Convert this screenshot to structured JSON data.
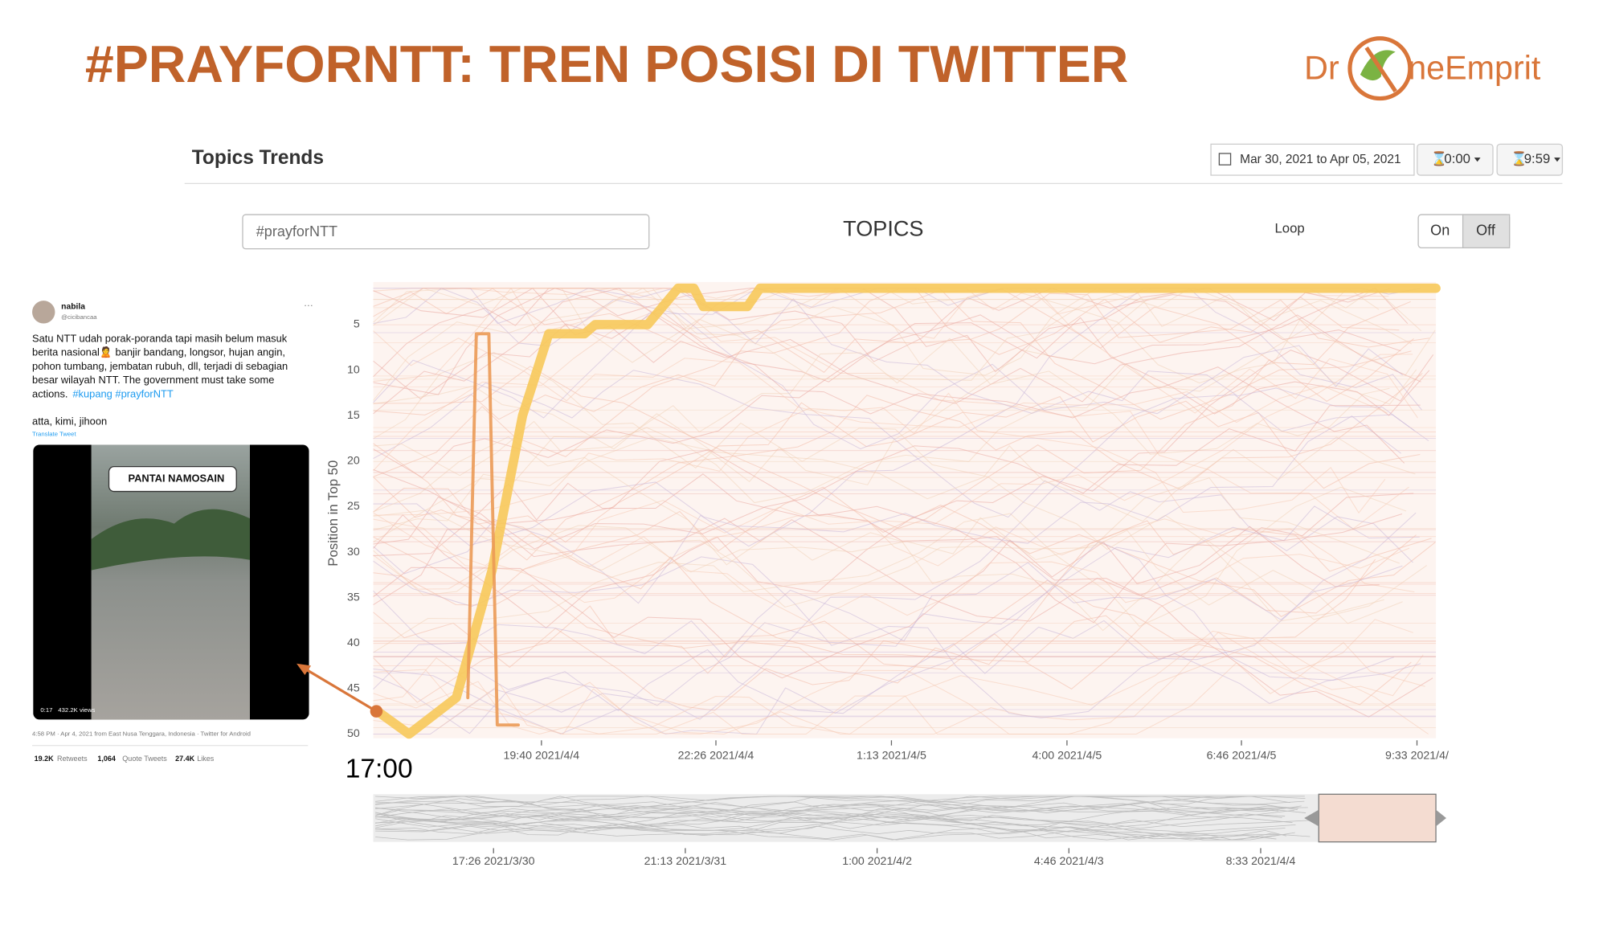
{
  "slide": {
    "title": "#PRAYFORNTT: TREN POSISI DI TWITTER",
    "logo_left": "Dr",
    "logo_right": "neEmprit"
  },
  "app": {
    "title": "Topics Trends",
    "date_range": "Mar 30, 2021 to Apr 05, 2021",
    "start_time": "0:00",
    "end_time": "9:59",
    "search": "#prayforNTT",
    "topics_label": "TOPICS",
    "loop_label": "Loop",
    "on": "On",
    "off": "Off",
    "navigator_ticks": [
      "17:26 2021/3/30",
      "21:13 2021/3/31",
      "1:00 2021/4/2",
      "4:46 2021/4/3",
      "8:33 2021/4/4"
    ]
  },
  "tweet": {
    "name": "nabila",
    "handle": "@cicibancaa",
    "lines": [
      "Satu NTT udah porak-poranda tapi masih belum masuk",
      "berita nasional🙎 banjir bandang, longsor, hujan angin,",
      "pohon tumbang, jembatan rubuh, dll, terjadi di sebagian",
      "besar wilayah NTT. The government must take some",
      "actions."
    ],
    "hashtags": "#kupang #prayforNTT",
    "mentions": "atta, kimi, jihoon",
    "translate": "Translate Tweet",
    "video_label": "PANTAI NAMOSAIN",
    "video_time": "0:17",
    "video_views": "432.2K views",
    "meta": "4:58 PM · Apr 4, 2021 from East Nusa Tenggara, Indonesia · Twitter for Android",
    "retweets": "19.2K",
    "retweets_label": "Retweets",
    "quotes": "1,064",
    "quotes_label": "Quote Tweets",
    "likes": "27.4K",
    "likes_label": "Likes"
  },
  "chart_data": {
    "type": "line",
    "y_label": "Position in Top 50",
    "annotation": "17:00",
    "y_reversed": true,
    "ylim": [
      1,
      50
    ],
    "yticks": [
      5,
      10,
      15,
      20,
      25,
      30,
      35,
      40,
      45,
      50
    ],
    "xlim": [
      "2021-04-04 17:00",
      "2021-04-05 09:51"
    ],
    "xticks": [
      {
        "value": "2021-04-04 19:40",
        "label": "19:40 2021/4/4"
      },
      {
        "value": "2021-04-04 22:26",
        "label": "22:26 2021/4/4"
      },
      {
        "value": "2021-04-05 01:13",
        "label": "1:13 2021/4/5"
      },
      {
        "value": "2021-04-05 04:00",
        "label": "4:00 2021/4/5"
      },
      {
        "value": "2021-04-05 06:46",
        "label": "6:46 2021/4/5"
      },
      {
        "value": "2021-04-05 09:33",
        "label": "9:33 2021/4/"
      }
    ],
    "series": [
      {
        "color": "#f7c95a",
        "width": 9,
        "x": [
          "2021-04-04 17:03",
          "2021-04-04 17:34",
          "2021-04-04 18:19",
          "2021-04-04 18:53",
          "2021-04-04 19:22",
          "2021-04-04 19:47",
          "2021-04-04 20:21",
          "2021-04-04 20:31",
          "2021-04-04 21:21",
          "2021-04-04 21:50",
          "2021-04-04 22:05",
          "2021-04-04 22:14",
          "2021-04-04 22:56",
          "2021-04-04 23:08",
          "2021-04-05 09:51"
        ],
        "values": [
          47.4,
          50,
          46,
          32,
          15,
          6,
          6,
          5,
          5,
          1,
          1,
          3,
          3,
          1,
          1
        ]
      },
      {
        "color": "#eb9a55",
        "width": 3,
        "x": [
          "2021-04-04 18:30",
          "2021-04-04 18:38",
          "2021-04-04 18:50",
          "2021-04-04 18:58",
          "2021-04-04 19:18"
        ],
        "values": [
          46,
          6,
          6,
          49,
          49
        ]
      }
    ]
  }
}
